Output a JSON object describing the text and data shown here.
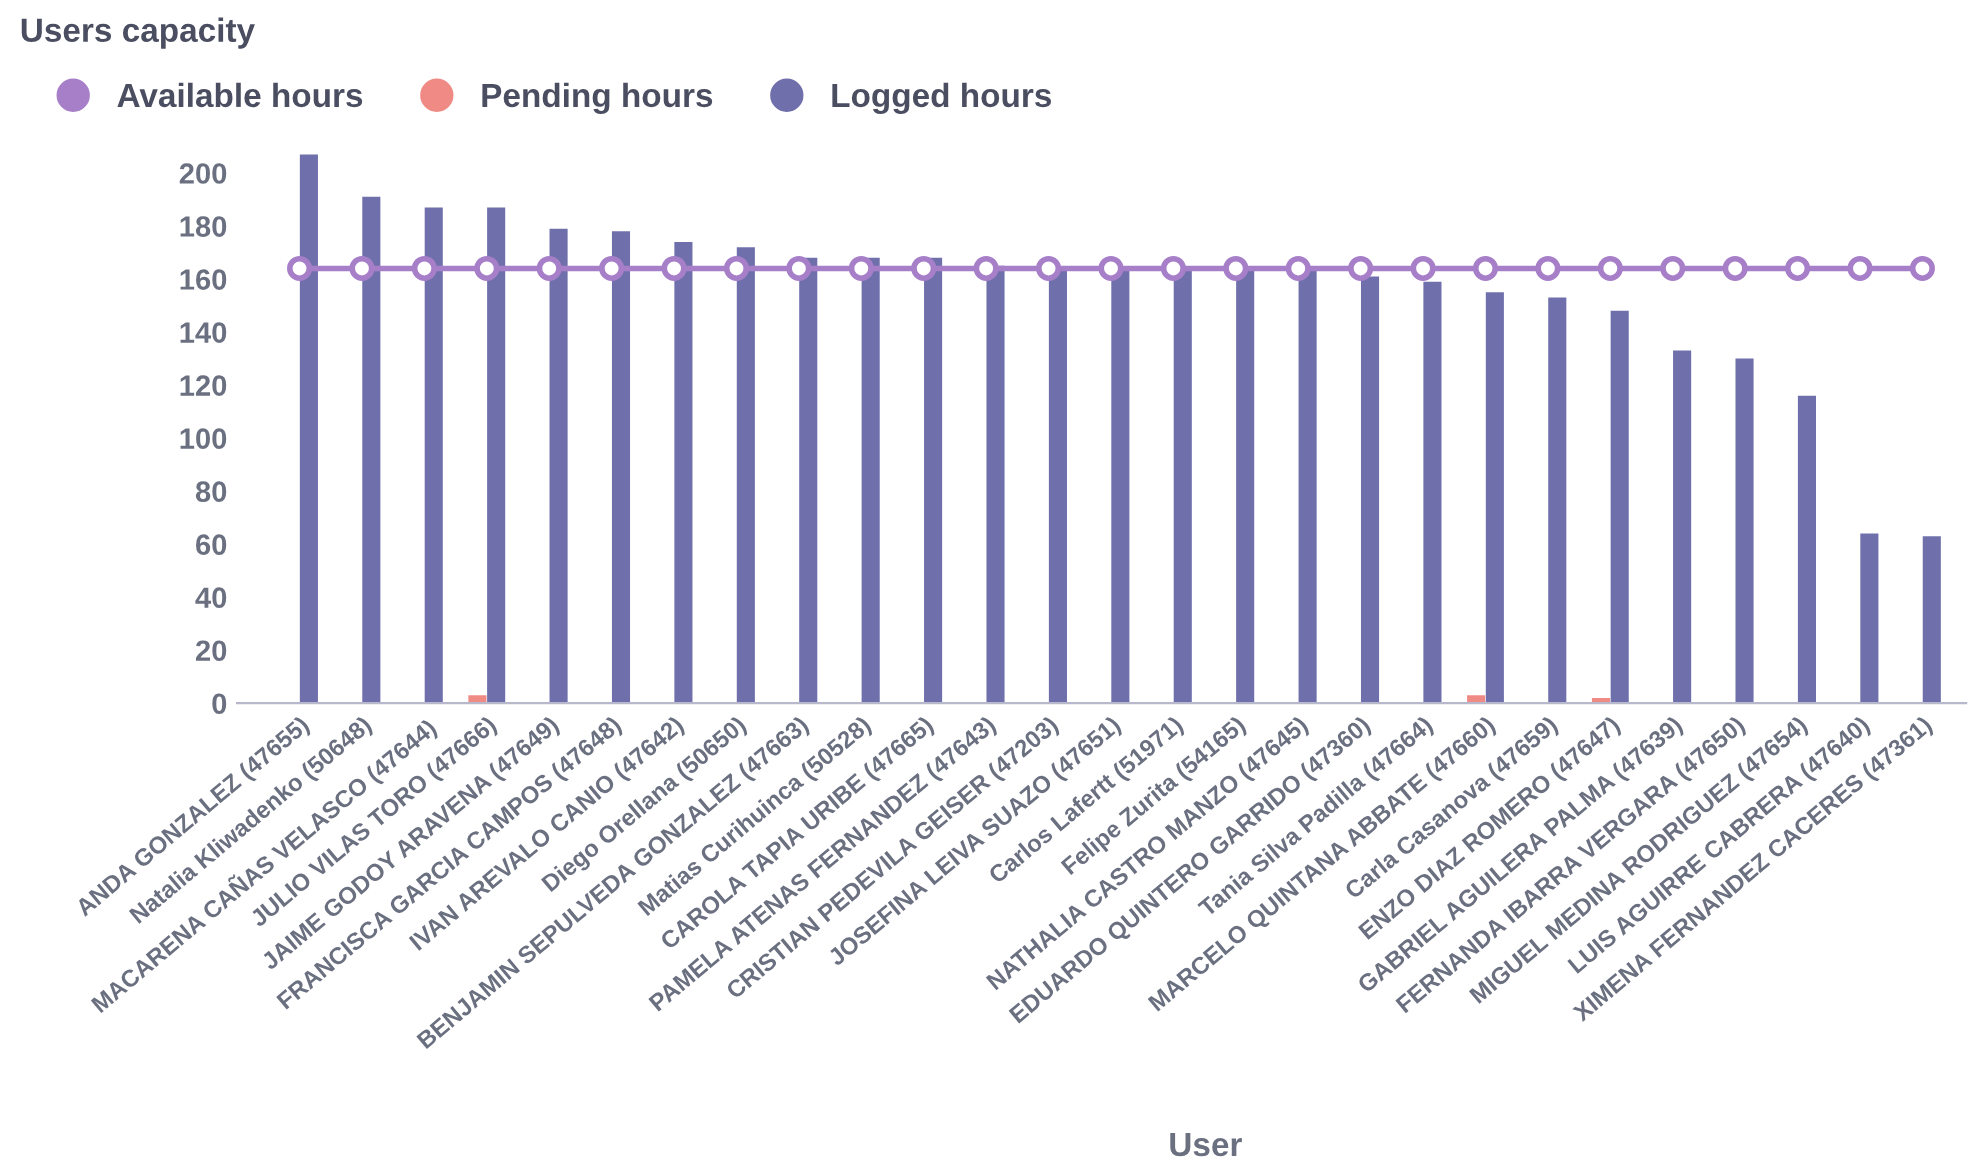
{
  "chart_data": {
    "type": "bar",
    "title": "Users capacity",
    "xlabel": "User",
    "categories": [
      "ANDA GONZALEZ (47655)",
      "Natalia Kliwadenko (50648)",
      "MACARENA CAÑAS VELASCO (47644)",
      "JULIO VILAS TORO (47666)",
      "JAIME GODOY ARAVENA (47649)",
      "FRANCISCA GARCIA CAMPOS (47648)",
      "IVAN AREVALO CANIO (47642)",
      "Diego Orellana (50650)",
      "BENJAMIN SEPULVEDA GONZALEZ (47663)",
      "Matias Curihuinca (50528)",
      "CAROLA TAPIA URIBE (47665)",
      "PAMELA ATENAS FERNANDEZ (47643)",
      "CRISTIAN PEDEVILA GEISER (47203)",
      "JOSEFINA LEIVA SUAZO (47651)",
      "Carlos Lafertt (51971)",
      "Felipe Zurita (54165)",
      "NATHALIA CASTRO MANZO (47645)",
      "EDUARDO QUINTERO GARRIDO (47360)",
      "Tania Silva Padilla (47664)",
      "MARCELO QUINTANA ABBATE (47660)",
      "Carla Casanova (47659)",
      "ENZO DIAZ ROMERO (47647)",
      "GABRIEL AGUILERA PALMA (47639)",
      "FERNANDA IBARRA VERGARA (47650)",
      "MIGUEL MEDINA RODRIGUEZ (47654)",
      "LUIS AGUIRRE CABRERA (47640)",
      "XIMENA FERNANDEZ CACERES (47361)"
    ],
    "series": [
      {
        "name": "Available hours",
        "type": "line",
        "color": "#a77fc9",
        "marker": "circle",
        "values": [
          164,
          164,
          164,
          164,
          164,
          164,
          164,
          164,
          164,
          164,
          164,
          164,
          164,
          164,
          164,
          164,
          164,
          164,
          164,
          164,
          164,
          164,
          164,
          164,
          164,
          164,
          164
        ]
      },
      {
        "name": "Pending hours",
        "color": "#f08a85",
        "values": [
          0,
          0,
          0,
          3,
          0,
          0,
          0,
          0,
          0,
          0,
          0,
          0,
          0,
          0,
          0,
          0,
          0,
          0,
          0,
          3,
          0,
          2,
          0,
          0,
          0,
          0,
          0
        ]
      },
      {
        "name": "Logged hours",
        "color": "#6f70ab",
        "values": [
          207,
          191,
          187,
          187,
          179,
          178,
          174,
          172,
          168,
          168,
          168,
          165,
          164,
          164,
          164,
          164,
          164,
          161,
          159,
          155,
          153,
          148,
          133,
          130,
          116,
          64,
          63
        ]
      }
    ],
    "ylim": [
      0,
      210
    ],
    "yticks": [
      0,
      20,
      40,
      60,
      80,
      100,
      120,
      140,
      160,
      180,
      200
    ],
    "grid": false,
    "legend": "top left"
  }
}
